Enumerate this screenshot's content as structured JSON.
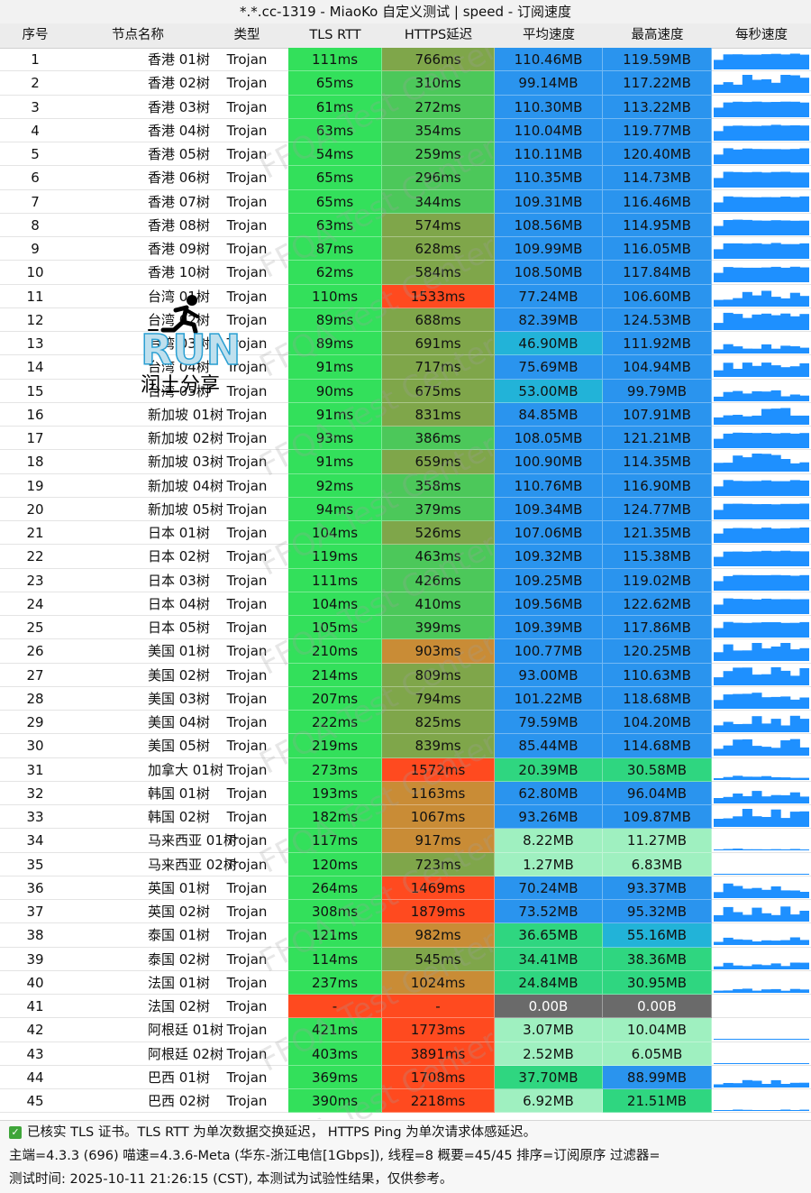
{
  "window": {
    "title": "*.*.cc-1319 - MiaoKo 自定义测试 | speed - 订阅速度"
  },
  "columns": [
    "序号",
    "节点名称",
    "类型",
    "TLS RTT",
    "HTTPS延迟",
    "平均速度",
    "最高速度",
    "每秒速度"
  ],
  "rows": [
    {
      "idx": "1",
      "name": "香港 01树",
      "type": "Trojan",
      "rtt": "111ms",
      "https": "766ms",
      "avg": "110.46MB",
      "max": "119.59MB"
    },
    {
      "idx": "2",
      "name": "香港 02树",
      "type": "Trojan",
      "rtt": "65ms",
      "https": "310ms",
      "avg": "99.14MB",
      "max": "117.22MB"
    },
    {
      "idx": "3",
      "name": "香港 03树",
      "type": "Trojan",
      "rtt": "61ms",
      "https": "272ms",
      "avg": "110.30MB",
      "max": "113.22MB"
    },
    {
      "idx": "4",
      "name": "香港 04树",
      "type": "Trojan",
      "rtt": "63ms",
      "https": "354ms",
      "avg": "110.04MB",
      "max": "119.77MB"
    },
    {
      "idx": "5",
      "name": "香港 05树",
      "type": "Trojan",
      "rtt": "54ms",
      "https": "259ms",
      "avg": "110.11MB",
      "max": "120.40MB"
    },
    {
      "idx": "6",
      "name": "香港 06树",
      "type": "Trojan",
      "rtt": "65ms",
      "https": "296ms",
      "avg": "110.35MB",
      "max": "114.73MB"
    },
    {
      "idx": "7",
      "name": "香港 07树",
      "type": "Trojan",
      "rtt": "65ms",
      "https": "344ms",
      "avg": "109.31MB",
      "max": "116.46MB"
    },
    {
      "idx": "8",
      "name": "香港 08树",
      "type": "Trojan",
      "rtt": "63ms",
      "https": "574ms",
      "avg": "108.56MB",
      "max": "114.95MB"
    },
    {
      "idx": "9",
      "name": "香港 09树",
      "type": "Trojan",
      "rtt": "87ms",
      "https": "628ms",
      "avg": "109.99MB",
      "max": "116.05MB"
    },
    {
      "idx": "10",
      "name": "香港 10树",
      "type": "Trojan",
      "rtt": "62ms",
      "https": "584ms",
      "avg": "108.50MB",
      "max": "117.84MB"
    },
    {
      "idx": "11",
      "name": "台湾 01树",
      "type": "Trojan",
      "rtt": "110ms",
      "https": "1533ms",
      "avg": "77.24MB",
      "max": "106.60MB"
    },
    {
      "idx": "12",
      "name": "台湾 02树",
      "type": "Trojan",
      "rtt": "89ms",
      "https": "688ms",
      "avg": "82.39MB",
      "max": "124.53MB"
    },
    {
      "idx": "13",
      "name": "台湾 03树",
      "type": "Trojan",
      "rtt": "89ms",
      "https": "691ms",
      "avg": "46.90MB",
      "max": "111.92MB"
    },
    {
      "idx": "14",
      "name": "台湾 04树",
      "type": "Trojan",
      "rtt": "91ms",
      "https": "717ms",
      "avg": "75.69MB",
      "max": "104.94MB"
    },
    {
      "idx": "15",
      "name": "台湾 05树",
      "type": "Trojan",
      "rtt": "90ms",
      "https": "675ms",
      "avg": "53.00MB",
      "max": "99.79MB"
    },
    {
      "idx": "16",
      "name": "新加坡 01树",
      "type": "Trojan",
      "rtt": "91ms",
      "https": "831ms",
      "avg": "84.85MB",
      "max": "107.91MB"
    },
    {
      "idx": "17",
      "name": "新加坡 02树",
      "type": "Trojan",
      "rtt": "93ms",
      "https": "386ms",
      "avg": "108.05MB",
      "max": "121.21MB"
    },
    {
      "idx": "18",
      "name": "新加坡 03树",
      "type": "Trojan",
      "rtt": "91ms",
      "https": "659ms",
      "avg": "100.90MB",
      "max": "114.35MB"
    },
    {
      "idx": "19",
      "name": "新加坡 04树",
      "type": "Trojan",
      "rtt": "92ms",
      "https": "358ms",
      "avg": "110.76MB",
      "max": "116.90MB"
    },
    {
      "idx": "20",
      "name": "新加坡 05树",
      "type": "Trojan",
      "rtt": "94ms",
      "https": "379ms",
      "avg": "109.34MB",
      "max": "124.77MB"
    },
    {
      "idx": "21",
      "name": "日本 01树",
      "type": "Trojan",
      "rtt": "104ms",
      "https": "526ms",
      "avg": "107.06MB",
      "max": "121.35MB"
    },
    {
      "idx": "22",
      "name": "日本 02树",
      "type": "Trojan",
      "rtt": "119ms",
      "https": "463ms",
      "avg": "109.32MB",
      "max": "115.38MB"
    },
    {
      "idx": "23",
      "name": "日本 03树",
      "type": "Trojan",
      "rtt": "111ms",
      "https": "426ms",
      "avg": "109.25MB",
      "max": "119.02MB"
    },
    {
      "idx": "24",
      "name": "日本 04树",
      "type": "Trojan",
      "rtt": "104ms",
      "https": "410ms",
      "avg": "109.56MB",
      "max": "122.62MB"
    },
    {
      "idx": "25",
      "name": "日本 05树",
      "type": "Trojan",
      "rtt": "105ms",
      "https": "399ms",
      "avg": "109.39MB",
      "max": "117.86MB"
    },
    {
      "idx": "26",
      "name": "美国 01树",
      "type": "Trojan",
      "rtt": "210ms",
      "https": "903ms",
      "avg": "100.77MB",
      "max": "120.25MB"
    },
    {
      "idx": "27",
      "name": "美国 02树",
      "type": "Trojan",
      "rtt": "214ms",
      "https": "809ms",
      "avg": "93.00MB",
      "max": "110.63MB"
    },
    {
      "idx": "28",
      "name": "美国 03树",
      "type": "Trojan",
      "rtt": "207ms",
      "https": "794ms",
      "avg": "101.22MB",
      "max": "118.68MB"
    },
    {
      "idx": "29",
      "name": "美国 04树",
      "type": "Trojan",
      "rtt": "222ms",
      "https": "825ms",
      "avg": "79.59MB",
      "max": "104.20MB"
    },
    {
      "idx": "30",
      "name": "美国 05树",
      "type": "Trojan",
      "rtt": "219ms",
      "https": "839ms",
      "avg": "85.44MB",
      "max": "114.68MB"
    },
    {
      "idx": "31",
      "name": "加拿大 01树",
      "type": "Trojan",
      "rtt": "273ms",
      "https": "1572ms",
      "avg": "20.39MB",
      "max": "30.58MB"
    },
    {
      "idx": "32",
      "name": "韩国 01树",
      "type": "Trojan",
      "rtt": "193ms",
      "https": "1163ms",
      "avg": "62.80MB",
      "max": "96.04MB"
    },
    {
      "idx": "33",
      "name": "韩国 02树",
      "type": "Trojan",
      "rtt": "182ms",
      "https": "1067ms",
      "avg": "93.26MB",
      "max": "109.87MB"
    },
    {
      "idx": "34",
      "name": "马来西亚 01树",
      "type": "Trojan",
      "rtt": "117ms",
      "https": "917ms",
      "avg": "8.22MB",
      "max": "11.27MB"
    },
    {
      "idx": "35",
      "name": "马来西亚 02树",
      "type": "Trojan",
      "rtt": "120ms",
      "https": "723ms",
      "avg": "1.27MB",
      "max": "6.83MB"
    },
    {
      "idx": "36",
      "name": "英国 01树",
      "type": "Trojan",
      "rtt": "264ms",
      "https": "1469ms",
      "avg": "70.24MB",
      "max": "93.37MB"
    },
    {
      "idx": "37",
      "name": "英国 02树",
      "type": "Trojan",
      "rtt": "308ms",
      "https": "1879ms",
      "avg": "73.52MB",
      "max": "95.32MB"
    },
    {
      "idx": "38",
      "name": "泰国 01树",
      "type": "Trojan",
      "rtt": "121ms",
      "https": "982ms",
      "avg": "36.65MB",
      "max": "55.16MB"
    },
    {
      "idx": "39",
      "name": "泰国 02树",
      "type": "Trojan",
      "rtt": "114ms",
      "https": "545ms",
      "avg": "34.41MB",
      "max": "38.36MB"
    },
    {
      "idx": "40",
      "name": "法国 01树",
      "type": "Trojan",
      "rtt": "237ms",
      "https": "1024ms",
      "avg": "24.84MB",
      "max": "30.95MB"
    },
    {
      "idx": "41",
      "name": "法国 02树",
      "type": "Trojan",
      "rtt": "-",
      "https": "-",
      "avg": "0.00B",
      "max": "0.00B"
    },
    {
      "idx": "42",
      "name": "阿根廷 01树",
      "type": "Trojan",
      "rtt": "421ms",
      "https": "1773ms",
      "avg": "3.07MB",
      "max": "10.04MB"
    },
    {
      "idx": "43",
      "name": "阿根廷 02树",
      "type": "Trojan",
      "rtt": "403ms",
      "https": "3891ms",
      "avg": "2.52MB",
      "max": "6.05MB"
    },
    {
      "idx": "44",
      "name": "巴西 01树",
      "type": "Trojan",
      "rtt": "369ms",
      "https": "1708ms",
      "avg": "37.70MB",
      "max": "88.99MB"
    },
    {
      "idx": "45",
      "name": "巴西 02树",
      "type": "Trojan",
      "rtt": "390ms",
      "https": "2218ms",
      "avg": "6.92MB",
      "max": "21.51MB"
    }
  ],
  "logo": {
    "run": "RUN",
    "caption": "润土分享"
  },
  "watermark": {
    "text": "FFQA Test Center"
  },
  "footer": {
    "line1": "已核实 TLS 证书。TLS RTT 为单次数据交换延迟， HTTPS Ping 为单次请求体感延迟。",
    "line2": "主端=4.3.3 (696) 喵速=4.3.6-Meta (华东-浙江电信[1Gbps]), 线程=8 概要=45/45 排序=订阅原序 过滤器=",
    "line3": "测试时间: 2025-10-11 21:26:15 (CST), 本测试为试验性结果，仅供参考。"
  },
  "colors": {
    "rtt_green": "#33e05b",
    "rtt_fail": "#ff4a1f",
    "https_olive": "#7fa64a",
    "https_fast": "#4cc85a",
    "https_orange": "#c98c36",
    "https_red": "#ff4a1f",
    "speed_blue": "#2a94ee",
    "speed_green": "#2fd680",
    "speed_light": "#9ff0c0",
    "speed_zero": "#6a6a6a",
    "spark_blue": "#1e90ff"
  },
  "icons": {
    "check": "check-icon",
    "runner": "running-man-icon"
  }
}
